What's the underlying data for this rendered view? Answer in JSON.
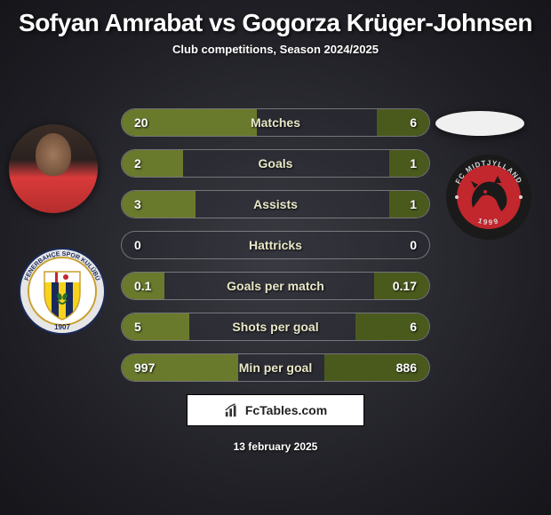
{
  "title": "Sofyan Amrabat vs Gogorza Krüger-Johnsen",
  "subtitle": "Club competitions, Season 2024/2025",
  "date": "13 february 2025",
  "attribution": "FcTables.com",
  "colors": {
    "bar_left": "#6a7a2d",
    "bar_right": "#4a5a1d",
    "label": "#e8e8c8"
  },
  "stats": [
    {
      "label": "Matches",
      "left_val": "20",
      "right_val": "6",
      "left_pct": 44,
      "right_pct": 17
    },
    {
      "label": "Goals",
      "left_val": "2",
      "right_val": "1",
      "left_pct": 20,
      "right_pct": 13
    },
    {
      "label": "Assists",
      "left_val": "3",
      "right_val": "1",
      "left_pct": 24,
      "right_pct": 13
    },
    {
      "label": "Hattricks",
      "left_val": "0",
      "right_val": "0",
      "left_pct": 0,
      "right_pct": 0
    },
    {
      "label": "Goals per match",
      "left_val": "0.1",
      "right_val": "0.17",
      "left_pct": 14,
      "right_pct": 18
    },
    {
      "label": "Shots per goal",
      "left_val": "5",
      "right_val": "6",
      "left_pct": 22,
      "right_pct": 24
    },
    {
      "label": "Min per goal",
      "left_val": "997",
      "right_val": "886",
      "left_pct": 38,
      "right_pct": 34
    }
  ],
  "clubs": {
    "left": {
      "name": "Fenerbahçe",
      "svg_colors": {
        "ring_outer": "#e6e6e6",
        "ring_text": "#1a2a5c",
        "stripe_yellow": "#f8d31c",
        "stripe_navy": "#1a2a5c",
        "center": "#ffffff"
      },
      "year": "1907"
    },
    "right": {
      "name": "FC Midtjylland",
      "svg_colors": {
        "ring": "#1a1a1a",
        "inner": "#c1272d",
        "wolf": "#1a1a1a",
        "text": "#d8d8d8"
      },
      "year": "1999"
    }
  }
}
